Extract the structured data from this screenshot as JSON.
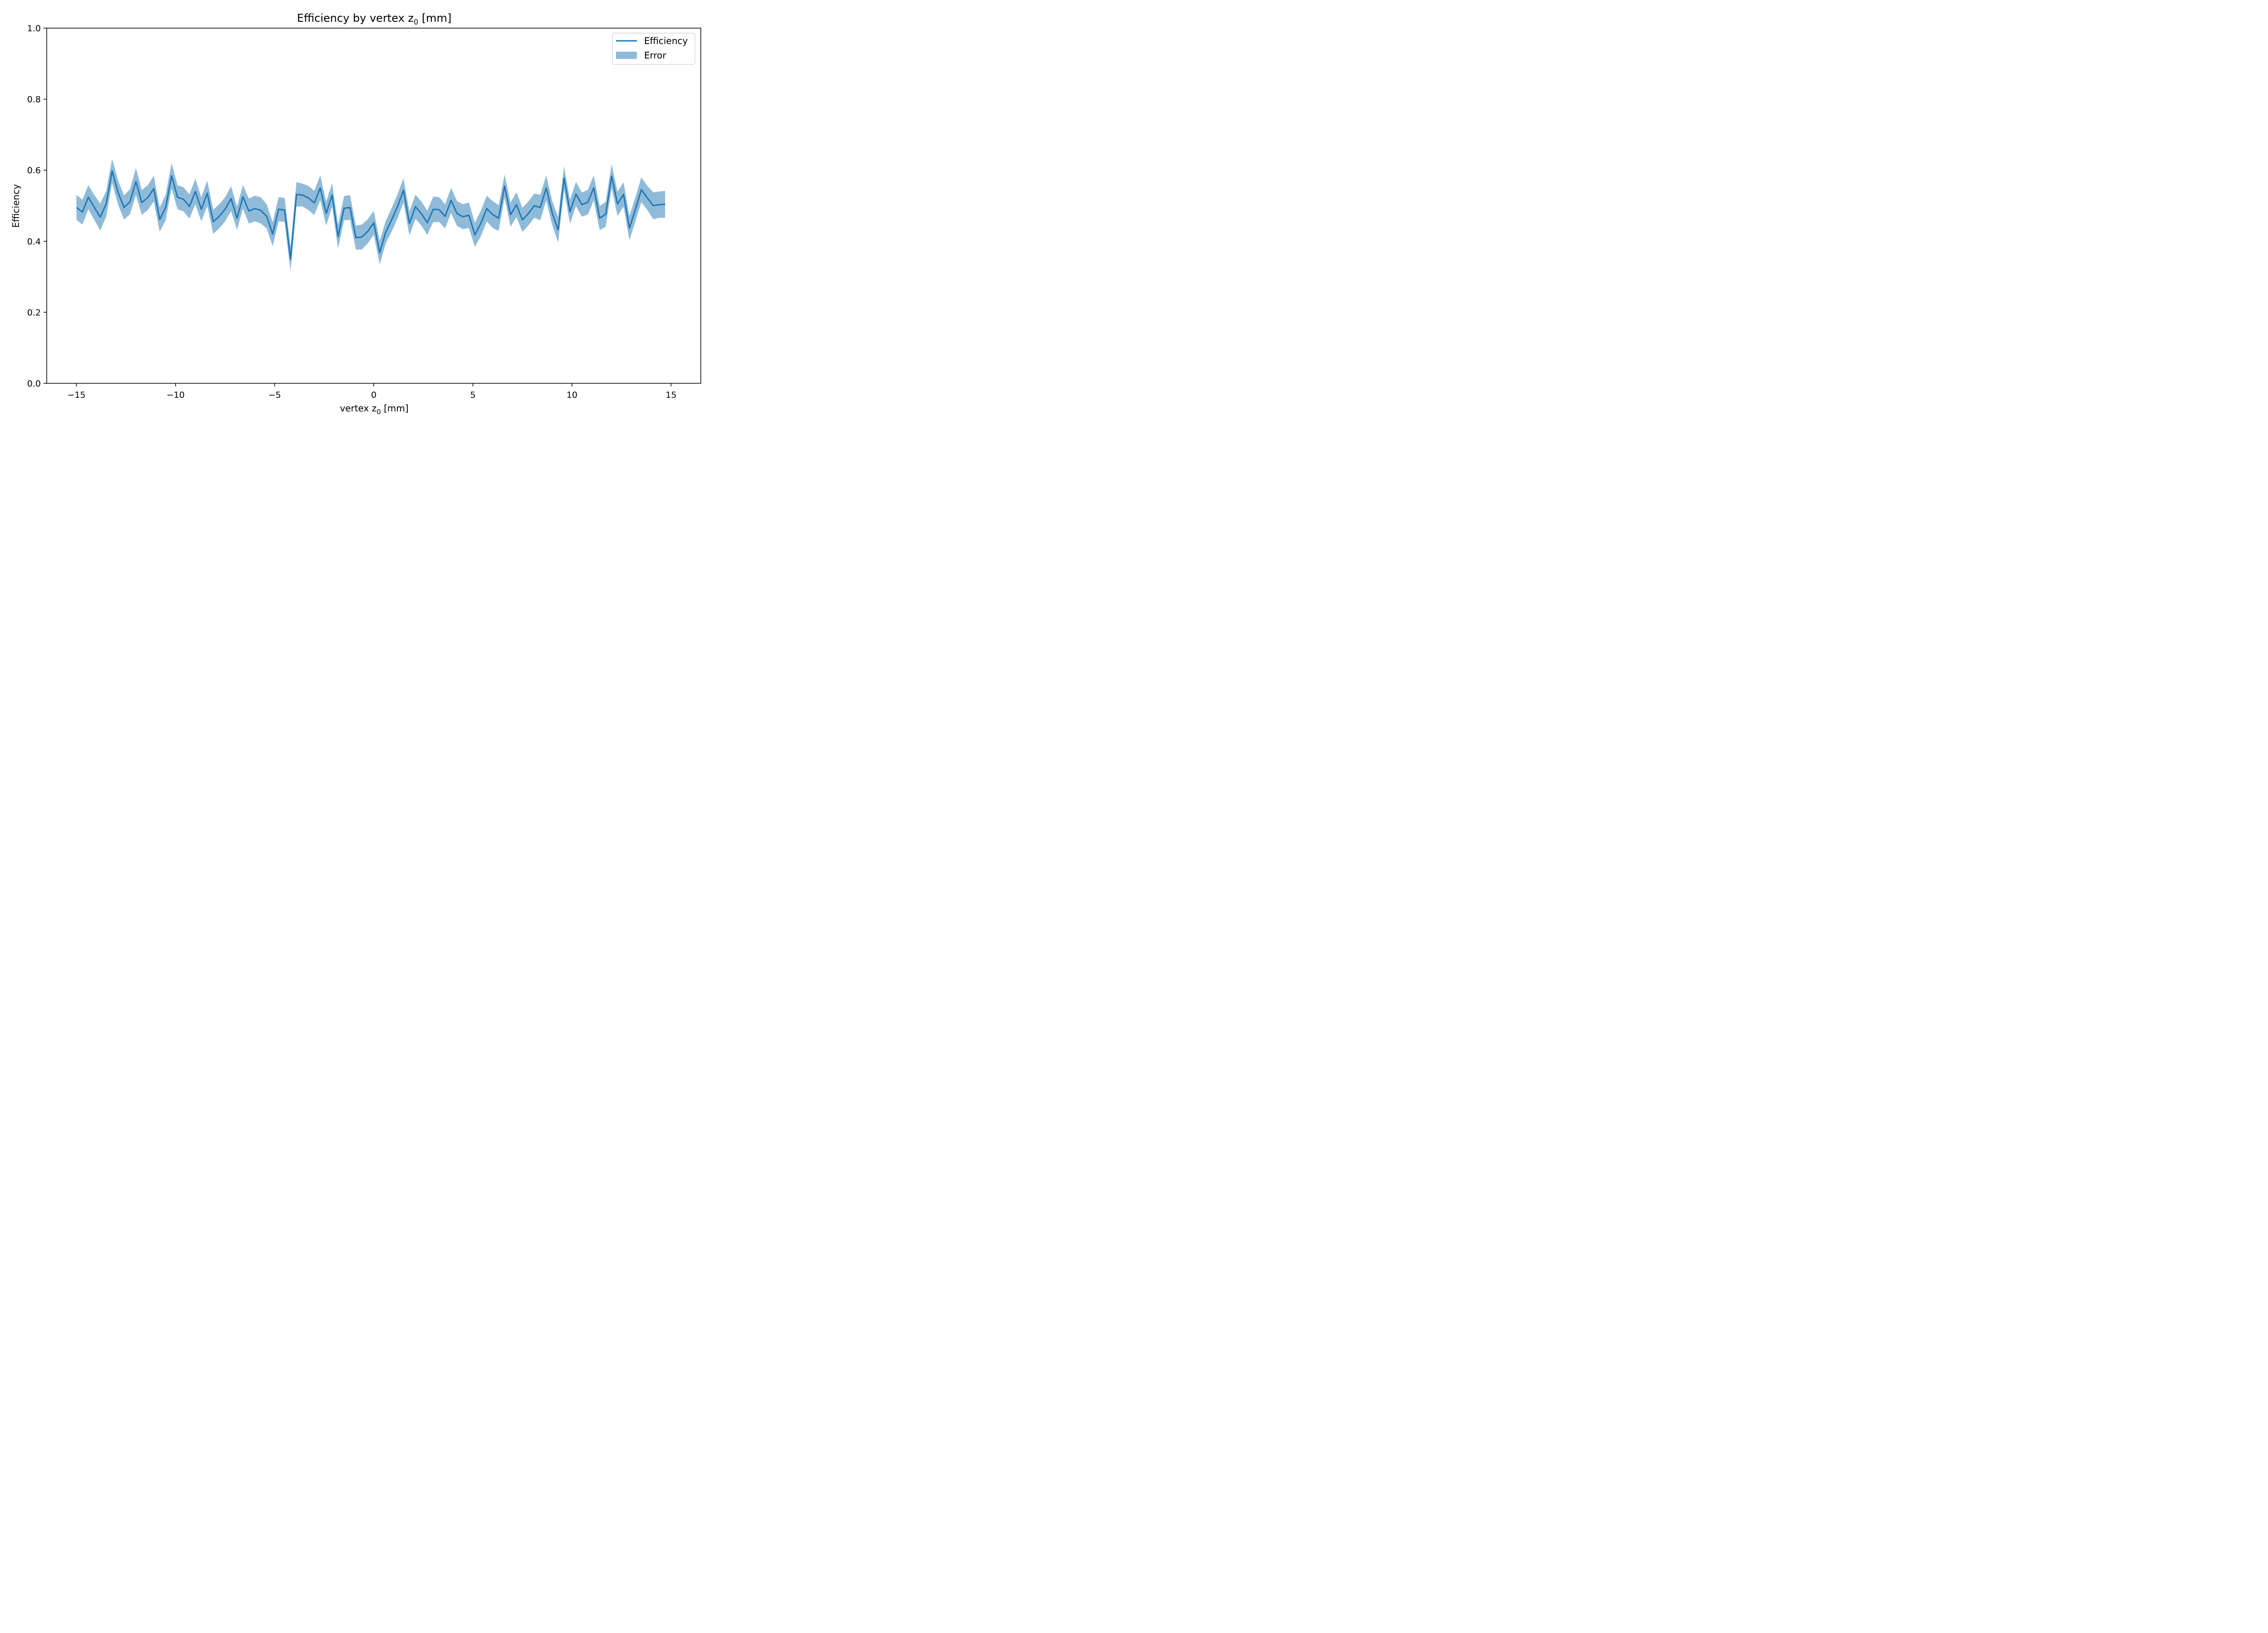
{
  "chart_data": {
    "type": "line",
    "title": "Efficiency by vertex z",
    "title_subscript": "0",
    "title_suffix": " [mm]",
    "xlabel": "vertex z",
    "xlabel_subscript": "0",
    "xlabel_suffix": " [mm]",
    "ylabel": "Efficiency",
    "xlim": [
      -16.5,
      16.5
    ],
    "ylim": [
      0.0,
      1.0
    ],
    "xticks": [
      -15,
      -10,
      -5,
      0,
      5,
      10,
      15
    ],
    "xtick_labels": [
      "−15",
      "−10",
      "−5",
      "0",
      "5",
      "10",
      "15"
    ],
    "yticks": [
      0.0,
      0.2,
      0.4,
      0.6,
      0.8,
      1.0
    ],
    "ytick_labels": [
      "0.0",
      "0.2",
      "0.4",
      "0.6",
      "0.8",
      "1.0"
    ],
    "grid": false,
    "legend_position": "top-right",
    "legend": [
      "Efficiency",
      "Error"
    ],
    "line_color": "#1f77b4",
    "band_color": "#1f77b4",
    "band_alpha": 0.5,
    "series": [
      {
        "name": "Efficiency",
        "x": [
          -15.0,
          -14.7,
          -14.4,
          -14.1,
          -13.8,
          -13.5,
          -13.2,
          -12.9,
          -12.6,
          -12.3,
          -12.0,
          -11.7,
          -11.4,
          -11.1,
          -10.8,
          -10.5,
          -10.2,
          -9.9,
          -9.6,
          -9.3,
          -9.0,
          -8.7,
          -8.4,
          -8.1,
          -7.8,
          -7.5,
          -7.2,
          -6.9,
          -6.6,
          -6.3,
          -6.0,
          -5.7,
          -5.4,
          -5.1,
          -4.8,
          -4.5,
          -4.2,
          -3.9,
          -3.6,
          -3.3,
          -3.0,
          -2.7,
          -2.4,
          -2.1,
          -1.8,
          -1.5,
          -1.2,
          -0.9,
          -0.6,
          -0.3,
          0.0,
          0.3,
          0.6,
          0.9,
          1.2,
          1.5,
          1.8,
          2.1,
          2.4,
          2.7,
          3.0,
          3.3,
          3.6,
          3.9,
          4.2,
          4.5,
          4.8,
          5.1,
          5.4,
          5.7,
          6.0,
          6.3,
          6.6,
          6.9,
          7.2,
          7.5,
          7.8,
          8.1,
          8.4,
          8.7,
          9.0,
          9.3,
          9.6,
          9.9,
          10.2,
          10.5,
          10.8,
          11.1,
          11.4,
          11.7,
          12.0,
          12.3,
          12.6,
          12.9,
          13.2,
          13.5,
          13.8,
          14.1,
          14.4,
          14.7
        ],
        "y": [
          0.495,
          0.482,
          0.524,
          0.495,
          0.468,
          0.505,
          0.598,
          0.537,
          0.495,
          0.511,
          0.568,
          0.509,
          0.523,
          0.548,
          0.461,
          0.495,
          0.584,
          0.524,
          0.518,
          0.498,
          0.54,
          0.49,
          0.535,
          0.455,
          0.47,
          0.49,
          0.52,
          0.465,
          0.525,
          0.485,
          0.492,
          0.487,
          0.47,
          0.42,
          0.49,
          0.488,
          0.35,
          0.532,
          0.53,
          0.522,
          0.508,
          0.55,
          0.478,
          0.53,
          0.413,
          0.493,
          0.495,
          0.41,
          0.412,
          0.428,
          0.452,
          0.368,
          0.425,
          0.46,
          0.498,
          0.543,
          0.45,
          0.497,
          0.478,
          0.452,
          0.49,
          0.489,
          0.47,
          0.515,
          0.478,
          0.469,
          0.473,
          0.418,
          0.45,
          0.492,
          0.475,
          0.465,
          0.555,
          0.475,
          0.503,
          0.46,
          0.478,
          0.5,
          0.495,
          0.55,
          0.48,
          0.432,
          0.578,
          0.483,
          0.533,
          0.503,
          0.51,
          0.55,
          0.465,
          0.476,
          0.583,
          0.505,
          0.532,
          0.437,
          0.49,
          0.545,
          0.522,
          0.5,
          0.503,
          0.504
        ],
        "error": [
          0.035,
          0.035,
          0.034,
          0.035,
          0.038,
          0.036,
          0.034,
          0.034,
          0.034,
          0.035,
          0.038,
          0.035,
          0.035,
          0.036,
          0.034,
          0.036,
          0.036,
          0.034,
          0.034,
          0.034,
          0.036,
          0.034,
          0.036,
          0.034,
          0.034,
          0.034,
          0.035,
          0.033,
          0.033,
          0.035,
          0.036,
          0.037,
          0.034,
          0.034,
          0.034,
          0.034,
          0.034,
          0.034,
          0.032,
          0.034,
          0.034,
          0.035,
          0.034,
          0.033,
          0.034,
          0.034,
          0.035,
          0.034,
          0.035,
          0.034,
          0.034,
          0.033,
          0.032,
          0.033,
          0.034,
          0.034,
          0.034,
          0.034,
          0.034,
          0.034,
          0.036,
          0.035,
          0.034,
          0.035,
          0.035,
          0.035,
          0.036,
          0.034,
          0.036,
          0.036,
          0.038,
          0.036,
          0.033,
          0.034,
          0.035,
          0.034,
          0.034,
          0.034,
          0.036,
          0.035,
          0.034,
          0.036,
          0.033,
          0.034,
          0.034,
          0.034,
          0.035,
          0.035,
          0.034,
          0.035,
          0.034,
          0.034,
          0.034,
          0.034,
          0.034,
          0.035,
          0.034,
          0.038,
          0.037,
          0.038
        ]
      }
    ]
  }
}
